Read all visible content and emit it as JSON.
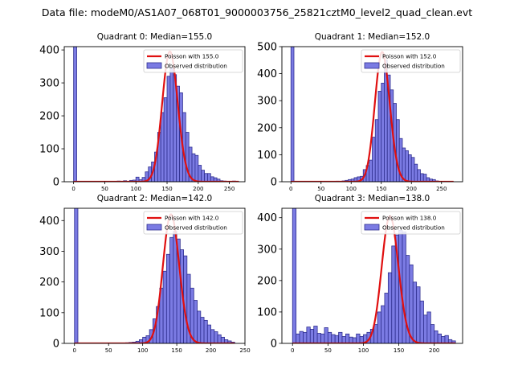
{
  "figure": {
    "suptitle": "Data file: modeM0/AS1A07_068T01_9000003756_25821cztM0_level2_quad_clean.evt"
  },
  "colors": {
    "bar_fill": "#7b7be3",
    "bar_edge": "#2f2f8f",
    "poisson_line": "#e01010",
    "axis": "#000000"
  },
  "chart_data": [
    {
      "type": "bar",
      "title": "Quadrant 0: Median=155.0",
      "median": 155.0,
      "xlim": [
        -15,
        275
      ],
      "ylim": [
        0,
        410
      ],
      "xticks": [
        0,
        50,
        100,
        150,
        200,
        250
      ],
      "yticks": [
        0,
        100,
        200,
        300,
        400
      ],
      "bin_width": 5,
      "bin_starts": [
        0,
        65,
        70,
        75,
        80,
        85,
        90,
        95,
        100,
        105,
        110,
        115,
        120,
        125,
        130,
        135,
        140,
        145,
        150,
        155,
        160,
        165,
        170,
        175,
        180,
        185,
        190,
        195,
        200,
        205,
        210,
        215,
        220,
        225,
        230,
        235,
        240,
        245,
        250,
        255,
        260
      ],
      "counts": [
        410,
        1,
        2,
        1,
        3,
        1,
        4,
        5,
        14,
        6,
        13,
        30,
        45,
        60,
        90,
        150,
        210,
        255,
        320,
        345,
        325,
        290,
        270,
        210,
        150,
        105,
        85,
        80,
        50,
        35,
        25,
        25,
        15,
        12,
        8,
        3,
        2,
        1,
        1,
        2,
        1
      ],
      "poisson_mean": 155.0,
      "poisson_peak": 395,
      "poisson_x_range": [
        0,
        265
      ],
      "legend": [
        "Poisson with 155.0",
        "Observed distribution"
      ],
      "legend_position": "top-right"
    },
    {
      "type": "bar",
      "title": "Quadrant 1: Median=152.0",
      "median": 152.0,
      "xlim": [
        -15,
        285
      ],
      "ylim": [
        0,
        500
      ],
      "xticks": [
        0,
        50,
        100,
        150,
        200,
        250
      ],
      "yticks": [
        0,
        100,
        200,
        300,
        400,
        500
      ],
      "bin_width": 5,
      "bin_starts": [
        0,
        70,
        75,
        80,
        85,
        90,
        95,
        100,
        105,
        110,
        115,
        120,
        125,
        130,
        135,
        140,
        145,
        150,
        155,
        160,
        165,
        170,
        175,
        180,
        185,
        190,
        195,
        200,
        205,
        210,
        215,
        220,
        225,
        230,
        235,
        240
      ],
      "counts": [
        500,
        1,
        2,
        1,
        3,
        5,
        8,
        10,
        15,
        18,
        20,
        45,
        60,
        80,
        165,
        230,
        335,
        365,
        450,
        395,
        340,
        290,
        230,
        160,
        125,
        115,
        100,
        90,
        65,
        45,
        30,
        28,
        15,
        10,
        8,
        3
      ],
      "poisson_mean": 152.0,
      "poisson_peak": 480,
      "poisson_x_range": [
        0,
        270
      ],
      "legend": [
        "Poisson with 152.0",
        "Observed distribution"
      ],
      "legend_position": "top-right"
    },
    {
      "type": "bar",
      "title": "Quadrant 2: Median=142.0",
      "median": 142.0,
      "xlim": [
        -15,
        250
      ],
      "ylim": [
        0,
        440
      ],
      "xticks": [
        0,
        50,
        100,
        150,
        200,
        250
      ],
      "yticks": [
        0,
        100,
        200,
        300,
        400
      ],
      "bin_width": 5,
      "bin_starts": [
        0,
        65,
        70,
        75,
        80,
        85,
        90,
        95,
        100,
        105,
        110,
        115,
        120,
        125,
        130,
        135,
        140,
        145,
        150,
        155,
        160,
        165,
        170,
        175,
        180,
        185,
        190,
        195,
        200,
        205,
        210,
        215,
        220,
        225,
        230
      ],
      "counts": [
        440,
        1,
        1,
        2,
        3,
        4,
        7,
        12,
        20,
        25,
        45,
        80,
        120,
        180,
        235,
        290,
        345,
        365,
        340,
        305,
        285,
        225,
        180,
        140,
        105,
        85,
        75,
        60,
        45,
        38,
        28,
        20,
        12,
        8,
        4
      ],
      "poisson_mean": 142.0,
      "poisson_peak": 420,
      "poisson_x_range": [
        0,
        235
      ],
      "legend": [
        "Poisson with 142.0",
        "Observed distribution"
      ],
      "legend_position": "top-right"
    },
    {
      "type": "bar",
      "title": "Quadrant 3: Median=138.0",
      "median": 138.0,
      "xlim": [
        -15,
        240
      ],
      "ylim": [
        0,
        430
      ],
      "xticks": [
        0,
        50,
        100,
        150,
        200
      ],
      "yticks": [
        0,
        100,
        200,
        300,
        400
      ],
      "bin_width": 5,
      "bin_starts": [
        0,
        5,
        10,
        15,
        20,
        25,
        30,
        35,
        40,
        45,
        50,
        55,
        60,
        65,
        70,
        75,
        80,
        85,
        90,
        95,
        100,
        105,
        110,
        115,
        120,
        125,
        130,
        135,
        140,
        145,
        150,
        155,
        160,
        165,
        170,
        175,
        180,
        185,
        190,
        195,
        200,
        205,
        210,
        215,
        220,
        225
      ],
      "counts": [
        430,
        30,
        38,
        35,
        52,
        45,
        55,
        32,
        30,
        50,
        35,
        28,
        25,
        35,
        22,
        30,
        20,
        18,
        30,
        22,
        28,
        35,
        45,
        60,
        100,
        120,
        160,
        225,
        310,
        345,
        360,
        355,
        280,
        250,
        195,
        180,
        135,
        90,
        100,
        60,
        40,
        30,
        22,
        25,
        12,
        8
      ],
      "poisson_mean": 138.0,
      "poisson_peak": 405,
      "poisson_x_range": [
        0,
        230
      ],
      "legend": [
        "Poisson with 138.0",
        "Observed distribution"
      ],
      "legend_position": "top-right"
    }
  ]
}
